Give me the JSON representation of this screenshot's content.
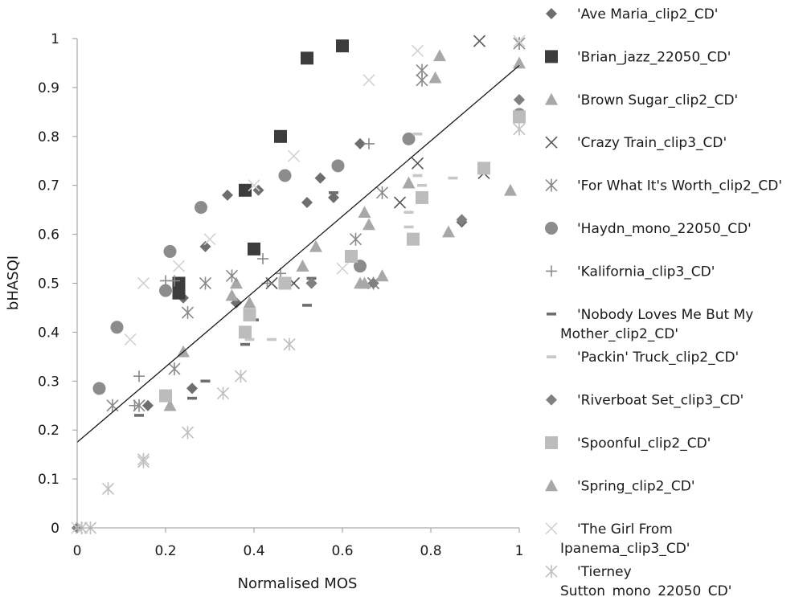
{
  "chart_data": {
    "type": "scatter",
    "xlabel": "Normalised MOS",
    "ylabel": "bHASQI",
    "xlim": [
      0,
      1
    ],
    "ylim": [
      0,
      1
    ],
    "x_ticks": [
      "0",
      "0.2",
      "0.4",
      "0.6",
      "0.8",
      "1"
    ],
    "y_ticks": [
      "0",
      "0.1",
      "0.2",
      "0.3",
      "0.4",
      "0.5",
      "0.6",
      "0.7",
      "0.8",
      "0.9",
      "1"
    ],
    "grid": false,
    "legend_position": "right",
    "trendline": {
      "type": "linear",
      "x": [
        0,
        1
      ],
      "y": [
        0.175,
        0.945
      ],
      "color": "#1a1a1a"
    },
    "series": [
      {
        "name": "'Ave Maria_clip2_CD'",
        "marker": "diamond",
        "color": "#6e6e6e",
        "points": [
          [
            0.0,
            0.0
          ],
          [
            0.34,
            0.68
          ],
          [
            0.41,
            0.69
          ],
          [
            0.52,
            0.665
          ],
          [
            0.55,
            0.715
          ],
          [
            0.58,
            0.675
          ],
          [
            0.64,
            0.785
          ],
          [
            0.29,
            0.575
          ],
          [
            0.24,
            0.47
          ],
          [
            0.36,
            0.46
          ],
          [
            0.16,
            0.25
          ],
          [
            0.26,
            0.285
          ],
          [
            0.53,
            0.5
          ],
          [
            0.67,
            0.5
          ],
          [
            0.87,
            0.625
          ],
          [
            1.0,
            0.875
          ]
        ]
      },
      {
        "name": "'Brian_jazz_22050_CD'",
        "marker": "square",
        "color": "#3c3c3c",
        "points": [
          [
            0.52,
            0.96
          ],
          [
            0.6,
            0.985
          ],
          [
            0.46,
            0.8
          ],
          [
            0.38,
            0.69
          ],
          [
            0.4,
            0.57
          ],
          [
            0.23,
            0.5
          ],
          [
            0.23,
            0.48
          ]
        ]
      },
      {
        "name": "'Brown Sugar_clip2_CD'",
        "marker": "triangle",
        "color": "#a8a8a8",
        "points": [
          [
            0.82,
            0.965
          ],
          [
            0.81,
            0.92
          ],
          [
            1.0,
            0.95
          ],
          [
            0.65,
            0.645
          ],
          [
            0.66,
            0.62
          ],
          [
            0.75,
            0.705
          ],
          [
            0.54,
            0.575
          ],
          [
            0.51,
            0.535
          ],
          [
            0.64,
            0.5
          ],
          [
            0.69,
            0.515
          ],
          [
            0.36,
            0.5
          ],
          [
            0.39,
            0.46
          ],
          [
            0.35,
            0.475
          ],
          [
            0.24,
            0.36
          ],
          [
            0.21,
            0.25
          ],
          [
            0.84,
            0.605
          ],
          [
            0.98,
            0.69
          ]
        ]
      },
      {
        "name": "'Crazy Train_clip3_CD'",
        "marker": "x",
        "color": "#555555",
        "points": [
          [
            0.91,
            0.995
          ],
          [
            0.77,
            0.745
          ],
          [
            0.73,
            0.665
          ],
          [
            0.67,
            0.5
          ],
          [
            0.44,
            0.5
          ],
          [
            0.49,
            0.5
          ],
          [
            0.92,
            0.725
          ]
        ]
      },
      {
        "name": "'For What It's Worth_clip2_CD'",
        "marker": "asterisk",
        "color": "#8a8a8a",
        "points": [
          [
            0.78,
            0.935
          ],
          [
            0.78,
            0.915
          ],
          [
            0.69,
            0.685
          ],
          [
            0.63,
            0.59
          ],
          [
            0.35,
            0.515
          ],
          [
            0.29,
            0.5
          ],
          [
            0.25,
            0.44
          ],
          [
            0.22,
            0.325
          ],
          [
            0.08,
            0.25
          ],
          [
            0.14,
            0.25
          ],
          [
            0.67,
            0.5
          ],
          [
            1.0,
            0.99
          ]
        ]
      },
      {
        "name": "'Haydn_mono_22050_CD'",
        "marker": "circle",
        "color": "#8c8c8c",
        "points": [
          [
            0.47,
            0.72
          ],
          [
            0.59,
            0.74
          ],
          [
            0.28,
            0.655
          ],
          [
            0.21,
            0.565
          ],
          [
            0.2,
            0.485
          ],
          [
            0.09,
            0.41
          ],
          [
            0.05,
            0.285
          ],
          [
            0.75,
            0.795
          ],
          [
            1.0,
            0.845
          ],
          [
            0.64,
            0.535
          ]
        ]
      },
      {
        "name": "'Kalifornia_clip3_CD'",
        "marker": "plus",
        "color": "#8a8a8a",
        "points": [
          [
            0.66,
            0.785
          ],
          [
            0.2,
            0.505
          ],
          [
            0.22,
            0.505
          ],
          [
            0.42,
            0.55
          ],
          [
            0.46,
            0.52
          ],
          [
            0.14,
            0.31
          ],
          [
            0.13,
            0.25
          ],
          [
            0.43,
            0.5
          ]
        ]
      },
      {
        "name": "'Nobody Loves Me But My Mother_clip2_CD'",
        "marker": "dash",
        "color": "#6e6e6e",
        "points": [
          [
            0.58,
            0.685
          ],
          [
            0.4,
            0.425
          ],
          [
            0.38,
            0.375
          ],
          [
            0.52,
            0.455
          ],
          [
            0.53,
            0.51
          ],
          [
            0.29,
            0.3
          ],
          [
            0.26,
            0.265
          ],
          [
            0.14,
            0.23
          ]
        ]
      },
      {
        "name": "'Packin' Truck_clip2_CD'",
        "marker": "dash",
        "color": "#c8c8c8",
        "points": [
          [
            0.77,
            0.805
          ],
          [
            0.77,
            0.72
          ],
          [
            0.78,
            0.7
          ],
          [
            0.75,
            0.645
          ],
          [
            0.85,
            0.715
          ],
          [
            0.44,
            0.385
          ],
          [
            0.39,
            0.385
          ],
          [
            0.62,
            0.545
          ],
          [
            0.75,
            0.615
          ],
          [
            0.76,
            0.6
          ]
        ]
      },
      {
        "name": "'Riverboat Set_clip3_CD'",
        "marker": "diamond",
        "color": "#808080",
        "points": [
          [
            1.0,
            0.875
          ],
          [
            0.87,
            0.63
          ],
          [
            0.67,
            0.5
          ],
          [
            0.53,
            0.5
          ]
        ]
      },
      {
        "name": "'Spoonful_clip2_CD'",
        "marker": "square",
        "color": "#bcbcbc",
        "points": [
          [
            0.92,
            0.735
          ],
          [
            0.78,
            0.675
          ],
          [
            0.76,
            0.59
          ],
          [
            0.62,
            0.555
          ],
          [
            0.47,
            0.5
          ],
          [
            0.39,
            0.435
          ],
          [
            0.38,
            0.4
          ],
          [
            0.2,
            0.27
          ],
          [
            1.0,
            0.84
          ]
        ]
      },
      {
        "name": "'Spring_clip2_CD'",
        "marker": "triangle",
        "color": "#a8a8a8",
        "points": [
          [
            0.65,
            0.5
          ],
          [
            0.69,
            0.515
          ],
          [
            0.51,
            0.535
          ]
        ]
      },
      {
        "name": "'The Girl From Ipanema_clip3_CD'",
        "marker": "x",
        "color": "#d2d2d2",
        "points": [
          [
            0.77,
            0.975
          ],
          [
            0.66,
            0.915
          ],
          [
            0.49,
            0.76
          ],
          [
            0.4,
            0.7
          ],
          [
            0.3,
            0.59
          ],
          [
            0.23,
            0.535
          ],
          [
            0.15,
            0.5
          ],
          [
            0.12,
            0.385
          ],
          [
            0.6,
            0.53
          ],
          [
            1.0,
            0.995
          ],
          [
            0.0,
            0.0
          ]
        ]
      },
      {
        "name": "'Tierney Sutton_mono_22050_CD'",
        "marker": "asterisk",
        "color": "#c0c0c0",
        "points": [
          [
            0.48,
            0.375
          ],
          [
            0.37,
            0.31
          ],
          [
            0.33,
            0.275
          ],
          [
            0.25,
            0.195
          ],
          [
            0.15,
            0.14
          ],
          [
            0.15,
            0.135
          ],
          [
            0.07,
            0.08
          ],
          [
            0.03,
            0.0
          ],
          [
            0.01,
            0.0
          ],
          [
            1.0,
            0.815
          ]
        ]
      }
    ]
  }
}
